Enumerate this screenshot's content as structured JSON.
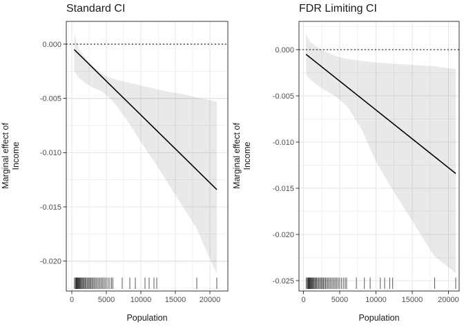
{
  "figure": {
    "background": "#ffffff"
  },
  "style": {
    "line_color": "#000000",
    "ribbon_color": "rgba(0,0,0,0.085)",
    "grid_major_color": "#e5e5e5",
    "grid_minor_color": "#f1f1f1",
    "border_color": "#333333",
    "axis_tick_color": "#333333",
    "tick_label_color": "#4d4d4d",
    "text_color": "#1a1a1a",
    "reference_line_color": "#1a1a1a",
    "rug_color": "#222222"
  },
  "chart_data": [
    {
      "type": "line",
      "title": "Standard CI",
      "xlabel": "Population",
      "ylabel_line1": "Marginal effect of",
      "ylabel_line2": "Income",
      "legend": "none",
      "grid": true,
      "xlim": [
        -800,
        22600
      ],
      "ylim": [
        -0.02275,
        0.0021
      ],
      "x_ticks": [
        0,
        5000,
        10000,
        15000,
        20000
      ],
      "x_tick_labels": [
        "0",
        "5000",
        "10000",
        "15000",
        "20000"
      ],
      "y_ticks": [
        0,
        -0.005,
        -0.01,
        -0.015,
        -0.02
      ],
      "y_tick_labels": [
        "0.000",
        "-0.005",
        "-0.010",
        "-0.015",
        "-0.020"
      ],
      "reference_line_y": 0,
      "line": {
        "x": [
          350,
          21000
        ],
        "y": [
          -0.0005,
          -0.0134
        ]
      },
      "ribbon": {
        "x": [
          350,
          1000,
          2000,
          3000,
          4500,
          6000,
          8000,
          10000,
          12000,
          14000,
          16000,
          18000,
          21000
        ],
        "upper": [
          0.001,
          -0.0004,
          -0.0013,
          -0.002,
          -0.0028,
          -0.0032,
          -0.0035,
          -0.0038,
          -0.0041,
          -0.0044,
          -0.0046,
          -0.0049,
          -0.0053
        ],
        "lower": [
          -0.0025,
          -0.0031,
          -0.0036,
          -0.004,
          -0.0044,
          -0.0053,
          -0.007,
          -0.009,
          -0.0109,
          -0.0129,
          -0.0149,
          -0.0169,
          -0.0212
        ]
      },
      "rug_x": [
        380,
        520,
        600,
        650,
        700,
        740,
        800,
        860,
        920,
        980,
        1050,
        1120,
        1200,
        1280,
        1380,
        1480,
        1600,
        1700,
        1820,
        1950,
        2080,
        2220,
        2360,
        2500,
        2620,
        2760,
        2900,
        3050,
        3200,
        3360,
        3520,
        3700,
        3880,
        4060,
        4240,
        4420,
        4600,
        4800,
        5000,
        5250,
        5500,
        5750,
        5950,
        7300,
        8400,
        9200,
        10600,
        11200,
        11900,
        12300,
        18100,
        21000
      ]
    },
    {
      "type": "line",
      "title": "FDR Limiting CI",
      "xlabel": "Population",
      "ylabel_line1": "Marginal effect of",
      "ylabel_line2": "Income",
      "legend": "none",
      "grid": true,
      "xlim": [
        -620,
        21480
      ],
      "ylim": [
        -0.02612,
        0.00306
      ],
      "x_ticks": [
        0,
        5000,
        10000,
        15000,
        20000
      ],
      "x_tick_labels": [
        "0",
        "5000",
        "10000",
        "15000",
        "20000"
      ],
      "y_ticks": [
        0,
        -0.005,
        -0.01,
        -0.015,
        -0.02,
        -0.025
      ],
      "y_tick_labels": [
        "0.000",
        "-0.005",
        "-0.010",
        "-0.015",
        "-0.020",
        "-0.025"
      ],
      "reference_line_y": 0,
      "line": {
        "x": [
          350,
          21000
        ],
        "y": [
          -0.0005,
          -0.0134
        ]
      },
      "ribbon": {
        "x": [
          350,
          1000,
          2000,
          3000,
          4500,
          6000,
          8000,
          10000,
          12000,
          14000,
          16000,
          18000,
          21000
        ],
        "upper": [
          0.0016,
          0.0008,
          0.0002,
          -0.0002,
          -0.0007,
          -0.001,
          -0.0012,
          -0.0014,
          -0.0015,
          -0.0016,
          -0.0017,
          -0.0018,
          -0.0021
        ],
        "lower": [
          -0.0027,
          -0.0033,
          -0.0039,
          -0.0044,
          -0.0051,
          -0.0061,
          -0.0086,
          -0.0121,
          -0.0148,
          -0.0173,
          -0.0198,
          -0.0223,
          -0.0242
        ]
      },
      "rug_x": [
        380,
        520,
        600,
        650,
        700,
        740,
        800,
        860,
        920,
        980,
        1050,
        1120,
        1200,
        1280,
        1380,
        1480,
        1600,
        1700,
        1820,
        1950,
        2080,
        2220,
        2360,
        2500,
        2620,
        2760,
        2900,
        3050,
        3200,
        3360,
        3520,
        3700,
        3880,
        4060,
        4240,
        4420,
        4600,
        4800,
        5000,
        5250,
        5500,
        5750,
        5950,
        7300,
        8400,
        9200,
        10600,
        11200,
        11900,
        12300,
        18100,
        21000
      ]
    }
  ]
}
